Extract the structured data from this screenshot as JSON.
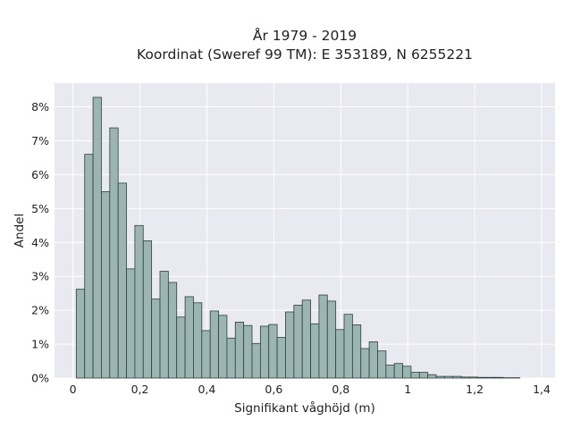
{
  "chart_data": {
    "type": "bar",
    "title": "År 1979 - 2019",
    "subtitle": "Koordinat (Sweref 99 TM): E 353189, N 6255221",
    "xlabel": "Signifikant våghöjd (m)",
    "ylabel": "Andel",
    "x_ticks": [
      "0",
      "0,2",
      "0,4",
      "0,6",
      "0,8",
      "1",
      "1,2",
      "1,4"
    ],
    "y_ticks": [
      "0%",
      "1%",
      "2%",
      "3%",
      "4%",
      "5%",
      "6%",
      "7%",
      "8%"
    ],
    "xlim": [
      -0.055,
      1.44
    ],
    "ylim": [
      0,
      8.7
    ],
    "grid": true,
    "bar_color": "#9bb5b3",
    "bar_edge_color": "#2f3f3e",
    "plot_background": "#e9e9f1",
    "bin_width": 0.025,
    "bin_starts": [
      0.01,
      0.035,
      0.06,
      0.085,
      0.11,
      0.135,
      0.16,
      0.185,
      0.21,
      0.235,
      0.26,
      0.285,
      0.31,
      0.335,
      0.36,
      0.385,
      0.41,
      0.435,
      0.46,
      0.485,
      0.51,
      0.535,
      0.56,
      0.585,
      0.61,
      0.635,
      0.66,
      0.685,
      0.71,
      0.735,
      0.76,
      0.785,
      0.81,
      0.835,
      0.86,
      0.885,
      0.91,
      0.935,
      0.96,
      0.985,
      1.01,
      1.035,
      1.06,
      1.085,
      1.11,
      1.135,
      1.16,
      1.185,
      1.21,
      1.235,
      1.26,
      1.285,
      1.31
    ],
    "values": [
      2.62,
      6.6,
      8.28,
      5.5,
      7.38,
      5.75,
      3.22,
      4.5,
      4.05,
      2.33,
      3.15,
      2.82,
      1.8,
      2.4,
      2.22,
      1.4,
      1.98,
      1.85,
      1.18,
      1.65,
      1.55,
      1.02,
      1.53,
      1.58,
      1.2,
      1.95,
      2.15,
      2.3,
      1.6,
      2.45,
      2.27,
      1.43,
      1.88,
      1.57,
      0.87,
      1.07,
      0.8,
      0.38,
      0.43,
      0.35,
      0.17,
      0.17,
      0.1,
      0.05,
      0.05,
      0.05,
      0.03,
      0.03,
      0.02,
      0.02,
      0.02,
      0.01,
      0.01
    ]
  }
}
